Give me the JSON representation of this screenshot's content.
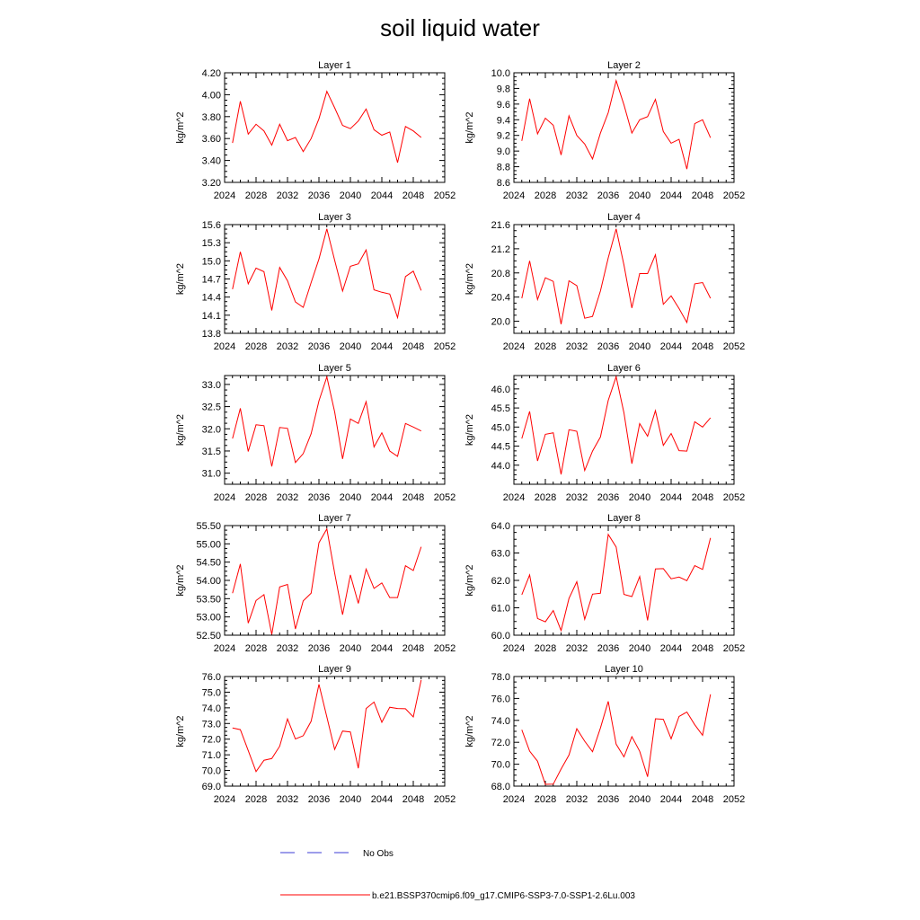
{
  "figure_title": "soil liquid water",
  "legend": {
    "entries": [
      {
        "label": "No Obs",
        "color": "#3b3bd6",
        "style": "dashed"
      },
      {
        "label": "b.e21.BSSP370cmip6.f09_g17.CMIP6-SSP3-7.0-SSP1-2.6Lu.003",
        "color": "#ff0000",
        "style": "solid"
      }
    ]
  },
  "series_color": "#ff0000",
  "chart_data": [
    {
      "type": "line",
      "title": "Layer 1",
      "xlabel": "",
      "ylabel": "kg/m^2",
      "xlim": [
        2024,
        2052
      ],
      "xticks": [
        "2024",
        "2028",
        "2032",
        "2036",
        "2040",
        "2044",
        "2048",
        "2052"
      ],
      "ylim": [
        3.2,
        4.2
      ],
      "yticks": [
        "3.20",
        "3.40",
        "3.60",
        "3.80",
        "4.00",
        "4.20"
      ],
      "x": [
        2025,
        2026,
        2027,
        2028,
        2029,
        2030,
        2031,
        2032,
        2033,
        2034,
        2035,
        2036,
        2037,
        2038,
        2039,
        2040,
        2041,
        2042,
        2043,
        2044,
        2045,
        2046,
        2047,
        2048,
        2049
      ],
      "series": [
        {
          "values": [
            3.56,
            3.94,
            3.64,
            3.73,
            3.67,
            3.54,
            3.73,
            3.58,
            3.61,
            3.48,
            3.6,
            3.78,
            4.03,
            3.88,
            3.72,
            3.69,
            3.76,
            3.87,
            3.68,
            3.63,
            3.66,
            3.38,
            3.71,
            3.67,
            3.61
          ]
        }
      ]
    },
    {
      "type": "line",
      "title": "Layer 2",
      "xlabel": "",
      "ylabel": "kg/m^2",
      "xlim": [
        2024,
        2052
      ],
      "xticks": [
        "2024",
        "2028",
        "2032",
        "2036",
        "2040",
        "2044",
        "2048",
        "2052"
      ],
      "ylim": [
        8.6,
        10.0
      ],
      "yticks": [
        "8.6",
        "8.8",
        "9.0",
        "9.2",
        "9.4",
        "9.6",
        "9.8",
        "10.0"
      ],
      "x": [
        2025,
        2026,
        2027,
        2028,
        2029,
        2030,
        2031,
        2032,
        2033,
        2034,
        2035,
        2036,
        2037,
        2038,
        2039,
        2040,
        2041,
        2042,
        2043,
        2044,
        2045,
        2046,
        2047,
        2048,
        2049
      ],
      "series": [
        {
          "values": [
            9.13,
            9.67,
            9.22,
            9.42,
            9.33,
            8.95,
            9.45,
            9.2,
            9.09,
            8.9,
            9.23,
            9.49,
            9.9,
            9.59,
            9.23,
            9.4,
            9.44,
            9.66,
            9.25,
            9.1,
            9.15,
            8.77,
            9.35,
            9.4,
            9.17
          ]
        }
      ]
    },
    {
      "type": "line",
      "title": "Layer 3",
      "xlabel": "",
      "ylabel": "kg/m^2",
      "xlim": [
        2024,
        2052
      ],
      "xticks": [
        "2024",
        "2028",
        "2032",
        "2036",
        "2040",
        "2044",
        "2048",
        "2052"
      ],
      "ylim": [
        13.8,
        15.6
      ],
      "yticks": [
        "13.8",
        "14.1",
        "14.4",
        "14.7",
        "15.0",
        "15.3",
        "15.6"
      ],
      "x": [
        2025,
        2026,
        2027,
        2028,
        2029,
        2030,
        2031,
        2032,
        2033,
        2034,
        2035,
        2036,
        2037,
        2038,
        2039,
        2040,
        2041,
        2042,
        2043,
        2044,
        2045,
        2046,
        2047,
        2048,
        2049
      ],
      "series": [
        {
          "values": [
            14.53,
            15.15,
            14.62,
            14.88,
            14.82,
            14.18,
            14.89,
            14.67,
            14.32,
            14.23,
            14.64,
            15.03,
            15.53,
            15.01,
            14.5,
            14.91,
            14.95,
            15.18,
            14.52,
            14.48,
            14.45,
            14.06,
            14.74,
            14.83,
            14.51
          ]
        }
      ]
    },
    {
      "type": "line",
      "title": "Layer 4",
      "xlabel": "",
      "ylabel": "kg/m^2",
      "xlim": [
        2024,
        2052
      ],
      "xticks": [
        "2024",
        "2028",
        "2032",
        "2036",
        "2040",
        "2044",
        "2048",
        "2052"
      ],
      "ylim": [
        19.8,
        21.6
      ],
      "yticks": [
        "20.0",
        "20.4",
        "20.8",
        "21.2",
        "21.6"
      ],
      "x": [
        2025,
        2026,
        2027,
        2028,
        2029,
        2030,
        2031,
        2032,
        2033,
        2034,
        2035,
        2036,
        2037,
        2038,
        2039,
        2040,
        2041,
        2042,
        2043,
        2044,
        2045,
        2046,
        2047,
        2048,
        2049
      ],
      "series": [
        {
          "values": [
            20.38,
            21.0,
            20.36,
            20.72,
            20.66,
            19.95,
            20.67,
            20.59,
            20.05,
            20.08,
            20.5,
            21.05,
            21.53,
            20.93,
            20.22,
            20.79,
            20.79,
            21.1,
            20.28,
            20.42,
            20.21,
            19.98,
            20.62,
            20.64,
            20.38
          ]
        }
      ]
    },
    {
      "type": "line",
      "title": "Layer 5",
      "xlabel": "",
      "ylabel": "kg/m^2",
      "xlim": [
        2024,
        2052
      ],
      "xticks": [
        "2024",
        "2028",
        "2032",
        "2036",
        "2040",
        "2044",
        "2048",
        "2052"
      ],
      "ylim": [
        30.75,
        33.2
      ],
      "yticks": [
        "31.0",
        "31.5",
        "32.0",
        "32.5",
        "33.0"
      ],
      "x": [
        2025,
        2026,
        2027,
        2028,
        2029,
        2030,
        2031,
        2032,
        2033,
        2034,
        2035,
        2036,
        2037,
        2038,
        2039,
        2040,
        2041,
        2042,
        2043,
        2044,
        2045,
        2046,
        2047,
        2048,
        2049
      ],
      "series": [
        {
          "values": [
            31.78,
            32.46,
            31.49,
            32.09,
            32.07,
            31.15,
            32.03,
            32.01,
            31.24,
            31.44,
            31.89,
            32.63,
            33.17,
            32.38,
            31.32,
            32.22,
            32.12,
            32.61,
            31.59,
            31.91,
            31.5,
            31.38,
            32.12,
            32.04,
            31.95
          ]
        }
      ]
    },
    {
      "type": "line",
      "title": "Layer 6",
      "xlabel": "",
      "ylabel": "kg/m^2",
      "xlim": [
        2024,
        2052
      ],
      "xticks": [
        "2024",
        "2028",
        "2032",
        "2036",
        "2040",
        "2044",
        "2048",
        "2052"
      ],
      "ylim": [
        43.5,
        46.35
      ],
      "yticks": [
        "44.0",
        "44.5",
        "45.0",
        "45.5",
        "46.0"
      ],
      "x": [
        2025,
        2026,
        2027,
        2028,
        2029,
        2030,
        2031,
        2032,
        2033,
        2034,
        2035,
        2036,
        2037,
        2038,
        2039,
        2040,
        2041,
        2042,
        2043,
        2044,
        2045,
        2046,
        2047,
        2048,
        2049
      ],
      "series": [
        {
          "values": [
            44.7,
            45.41,
            44.11,
            44.81,
            44.85,
            43.76,
            44.93,
            44.89,
            43.86,
            44.37,
            44.74,
            45.7,
            46.32,
            45.37,
            44.04,
            45.09,
            44.76,
            45.43,
            44.52,
            44.83,
            44.38,
            44.37,
            45.14,
            45.0,
            45.24
          ]
        }
      ]
    },
    {
      "type": "line",
      "title": "Layer 7",
      "xlabel": "",
      "ylabel": "kg/m^2",
      "xlim": [
        2024,
        2052
      ],
      "xticks": [
        "2024",
        "2028",
        "2032",
        "2036",
        "2040",
        "2044",
        "2048",
        "2052"
      ],
      "ylim": [
        52.5,
        55.5
      ],
      "yticks": [
        "52.50",
        "53.00",
        "53.50",
        "54.00",
        "54.50",
        "55.00",
        "55.50"
      ],
      "x": [
        2025,
        2026,
        2027,
        2028,
        2029,
        2030,
        2031,
        2032,
        2033,
        2034,
        2035,
        2036,
        2037,
        2038,
        2039,
        2040,
        2041,
        2042,
        2043,
        2044,
        2045,
        2046,
        2047,
        2048,
        2049
      ],
      "series": [
        {
          "values": [
            53.65,
            54.45,
            52.83,
            53.45,
            53.61,
            52.52,
            53.82,
            53.89,
            52.67,
            53.44,
            53.65,
            55.03,
            55.41,
            54.2,
            53.06,
            54.15,
            53.37,
            54.31,
            53.78,
            53.93,
            53.53,
            53.53,
            54.4,
            54.27,
            54.92
          ]
        }
      ]
    },
    {
      "type": "line",
      "title": "Layer 8",
      "xlabel": "",
      "ylabel": "kg/m^2",
      "xlim": [
        2024,
        2052
      ],
      "xticks": [
        "2024",
        "2028",
        "2032",
        "2036",
        "2040",
        "2044",
        "2048",
        "2052"
      ],
      "ylim": [
        60.0,
        64.0
      ],
      "yticks": [
        "60.0",
        "61.0",
        "62.0",
        "63.0",
        "64.0"
      ],
      "x": [
        2025,
        2026,
        2027,
        2028,
        2029,
        2030,
        2031,
        2032,
        2033,
        2034,
        2035,
        2036,
        2037,
        2038,
        2039,
        2040,
        2041,
        2042,
        2043,
        2044,
        2045,
        2046,
        2047,
        2048,
        2049
      ],
      "series": [
        {
          "values": [
            61.48,
            62.2,
            60.61,
            60.49,
            60.9,
            60.17,
            61.34,
            61.95,
            60.58,
            61.5,
            61.53,
            63.68,
            63.22,
            61.49,
            61.41,
            62.14,
            60.54,
            62.42,
            62.43,
            62.06,
            62.12,
            61.99,
            62.54,
            62.4,
            63.55
          ]
        }
      ]
    },
    {
      "type": "line",
      "title": "Layer 9",
      "xlabel": "",
      "ylabel": "kg/m^2",
      "xlim": [
        2024,
        2052
      ],
      "xticks": [
        "2024",
        "2028",
        "2032",
        "2036",
        "2040",
        "2044",
        "2048",
        "2052"
      ],
      "ylim": [
        69.0,
        76.0
      ],
      "yticks": [
        "69.0",
        "70.0",
        "71.0",
        "72.0",
        "73.0",
        "74.0",
        "75.0",
        "76.0"
      ],
      "x": [
        2025,
        2026,
        2027,
        2028,
        2029,
        2030,
        2031,
        2032,
        2033,
        2034,
        2035,
        2036,
        2037,
        2038,
        2039,
        2040,
        2041,
        2042,
        2043,
        2044,
        2045,
        2046,
        2047,
        2048,
        2049
      ],
      "series": [
        {
          "values": [
            72.72,
            72.61,
            71.27,
            69.93,
            70.65,
            70.76,
            71.55,
            73.29,
            72.01,
            72.22,
            73.14,
            75.5,
            73.42,
            71.34,
            72.52,
            72.46,
            70.14,
            73.96,
            74.37,
            73.08,
            74.04,
            73.96,
            73.94,
            73.42,
            75.78
          ]
        }
      ]
    },
    {
      "type": "line",
      "title": "Layer 10",
      "xlabel": "",
      "ylabel": "kg/m^2",
      "xlim": [
        2024,
        2052
      ],
      "xticks": [
        "2024",
        "2028",
        "2032",
        "2036",
        "2040",
        "2044",
        "2048",
        "2052"
      ],
      "ylim": [
        68.0,
        78.0
      ],
      "yticks": [
        "68.0",
        "70.0",
        "72.0",
        "74.0",
        "76.0",
        "78.0"
      ],
      "x": [
        2025,
        2026,
        2027,
        2028,
        2029,
        2030,
        2031,
        2032,
        2033,
        2034,
        2035,
        2036,
        2037,
        2038,
        2039,
        2040,
        2041,
        2042,
        2043,
        2044,
        2045,
        2046,
        2047,
        2048,
        2049
      ],
      "series": [
        {
          "values": [
            73.14,
            71.2,
            70.27,
            68.16,
            68.18,
            69.56,
            70.84,
            73.24,
            72.1,
            71.14,
            73.3,
            75.73,
            71.83,
            70.67,
            72.52,
            71.18,
            68.85,
            74.15,
            74.1,
            72.32,
            74.35,
            74.76,
            73.6,
            72.64,
            76.38
          ]
        }
      ]
    }
  ]
}
